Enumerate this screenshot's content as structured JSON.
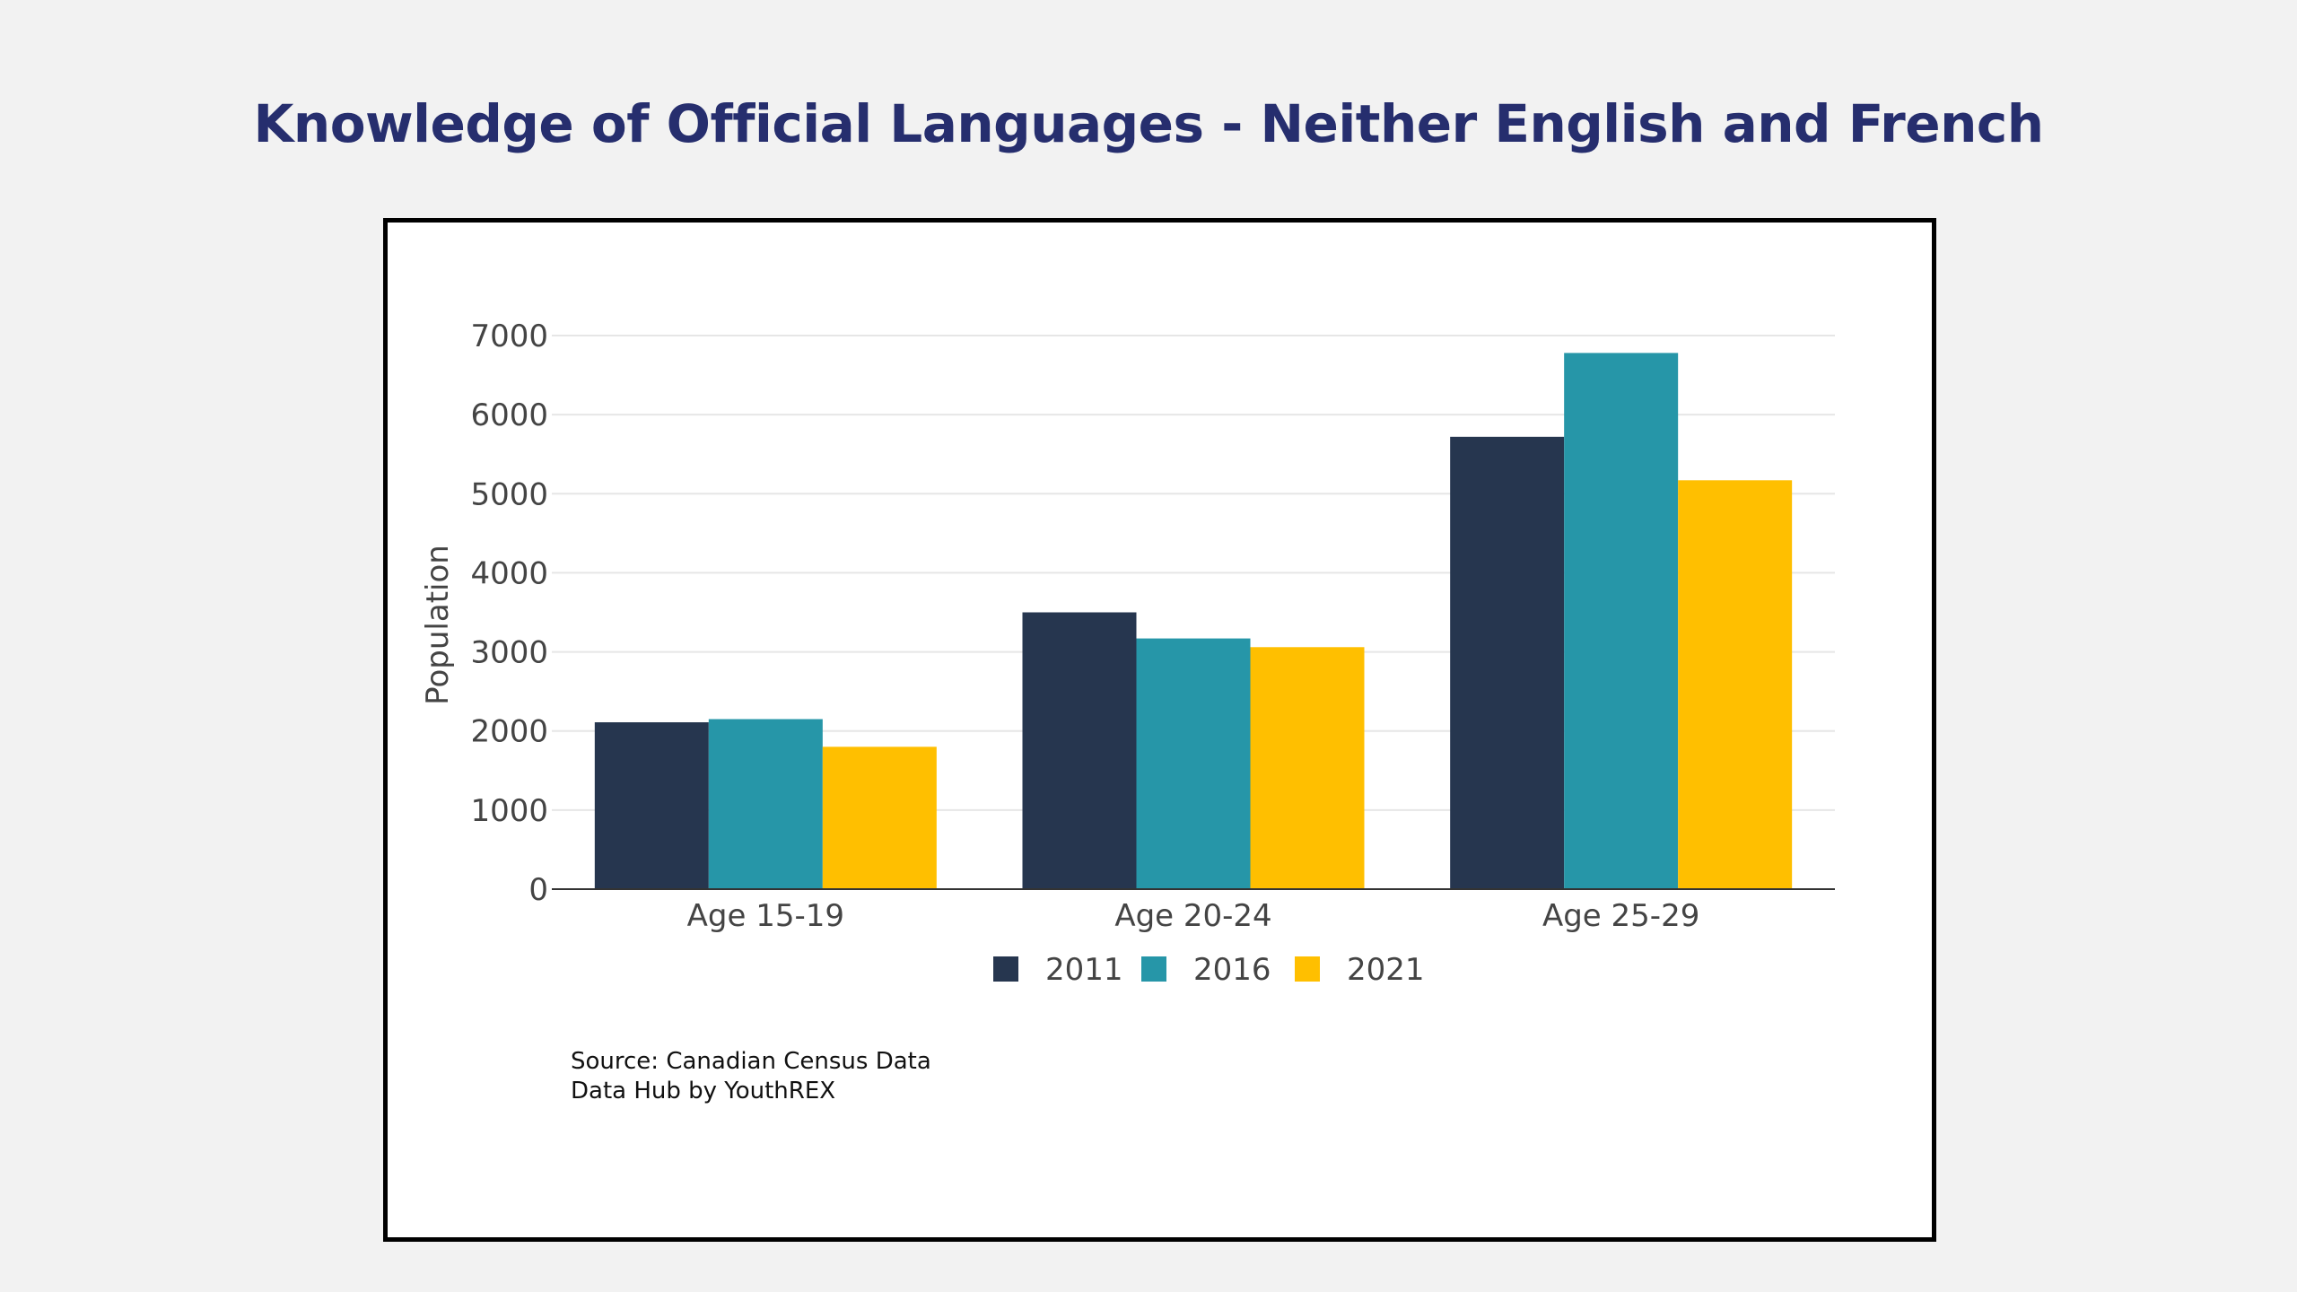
{
  "title": "Knowledge of Official Languages - Neither English and French",
  "source": {
    "line1": "Source: Canadian Census Data",
    "line2": "Data Hub by YouthREX"
  },
  "colors": {
    "title": "#262e6e",
    "2011": "#26364f",
    "2016": "#2696a8",
    "2021": "#ffbf00"
  },
  "chart_data": {
    "type": "bar",
    "categories": [
      "Age 15-19",
      "Age 20-24",
      "Age 25-29"
    ],
    "series": [
      {
        "name": "2011",
        "values": [
          2110,
          3500,
          5720
        ]
      },
      {
        "name": "2016",
        "values": [
          2150,
          3170,
          6780
        ]
      },
      {
        "name": "2021",
        "values": [
          1800,
          3060,
          5170
        ]
      }
    ],
    "title": "Knowledge of Official Languages - Neither English and French",
    "xlabel": "",
    "ylabel": "Population",
    "ylim": [
      0,
      7000
    ],
    "yticks": [
      0,
      1000,
      2000,
      3000,
      4000,
      5000,
      6000,
      7000
    ],
    "grid": true,
    "legend_position": "bottom-center"
  }
}
